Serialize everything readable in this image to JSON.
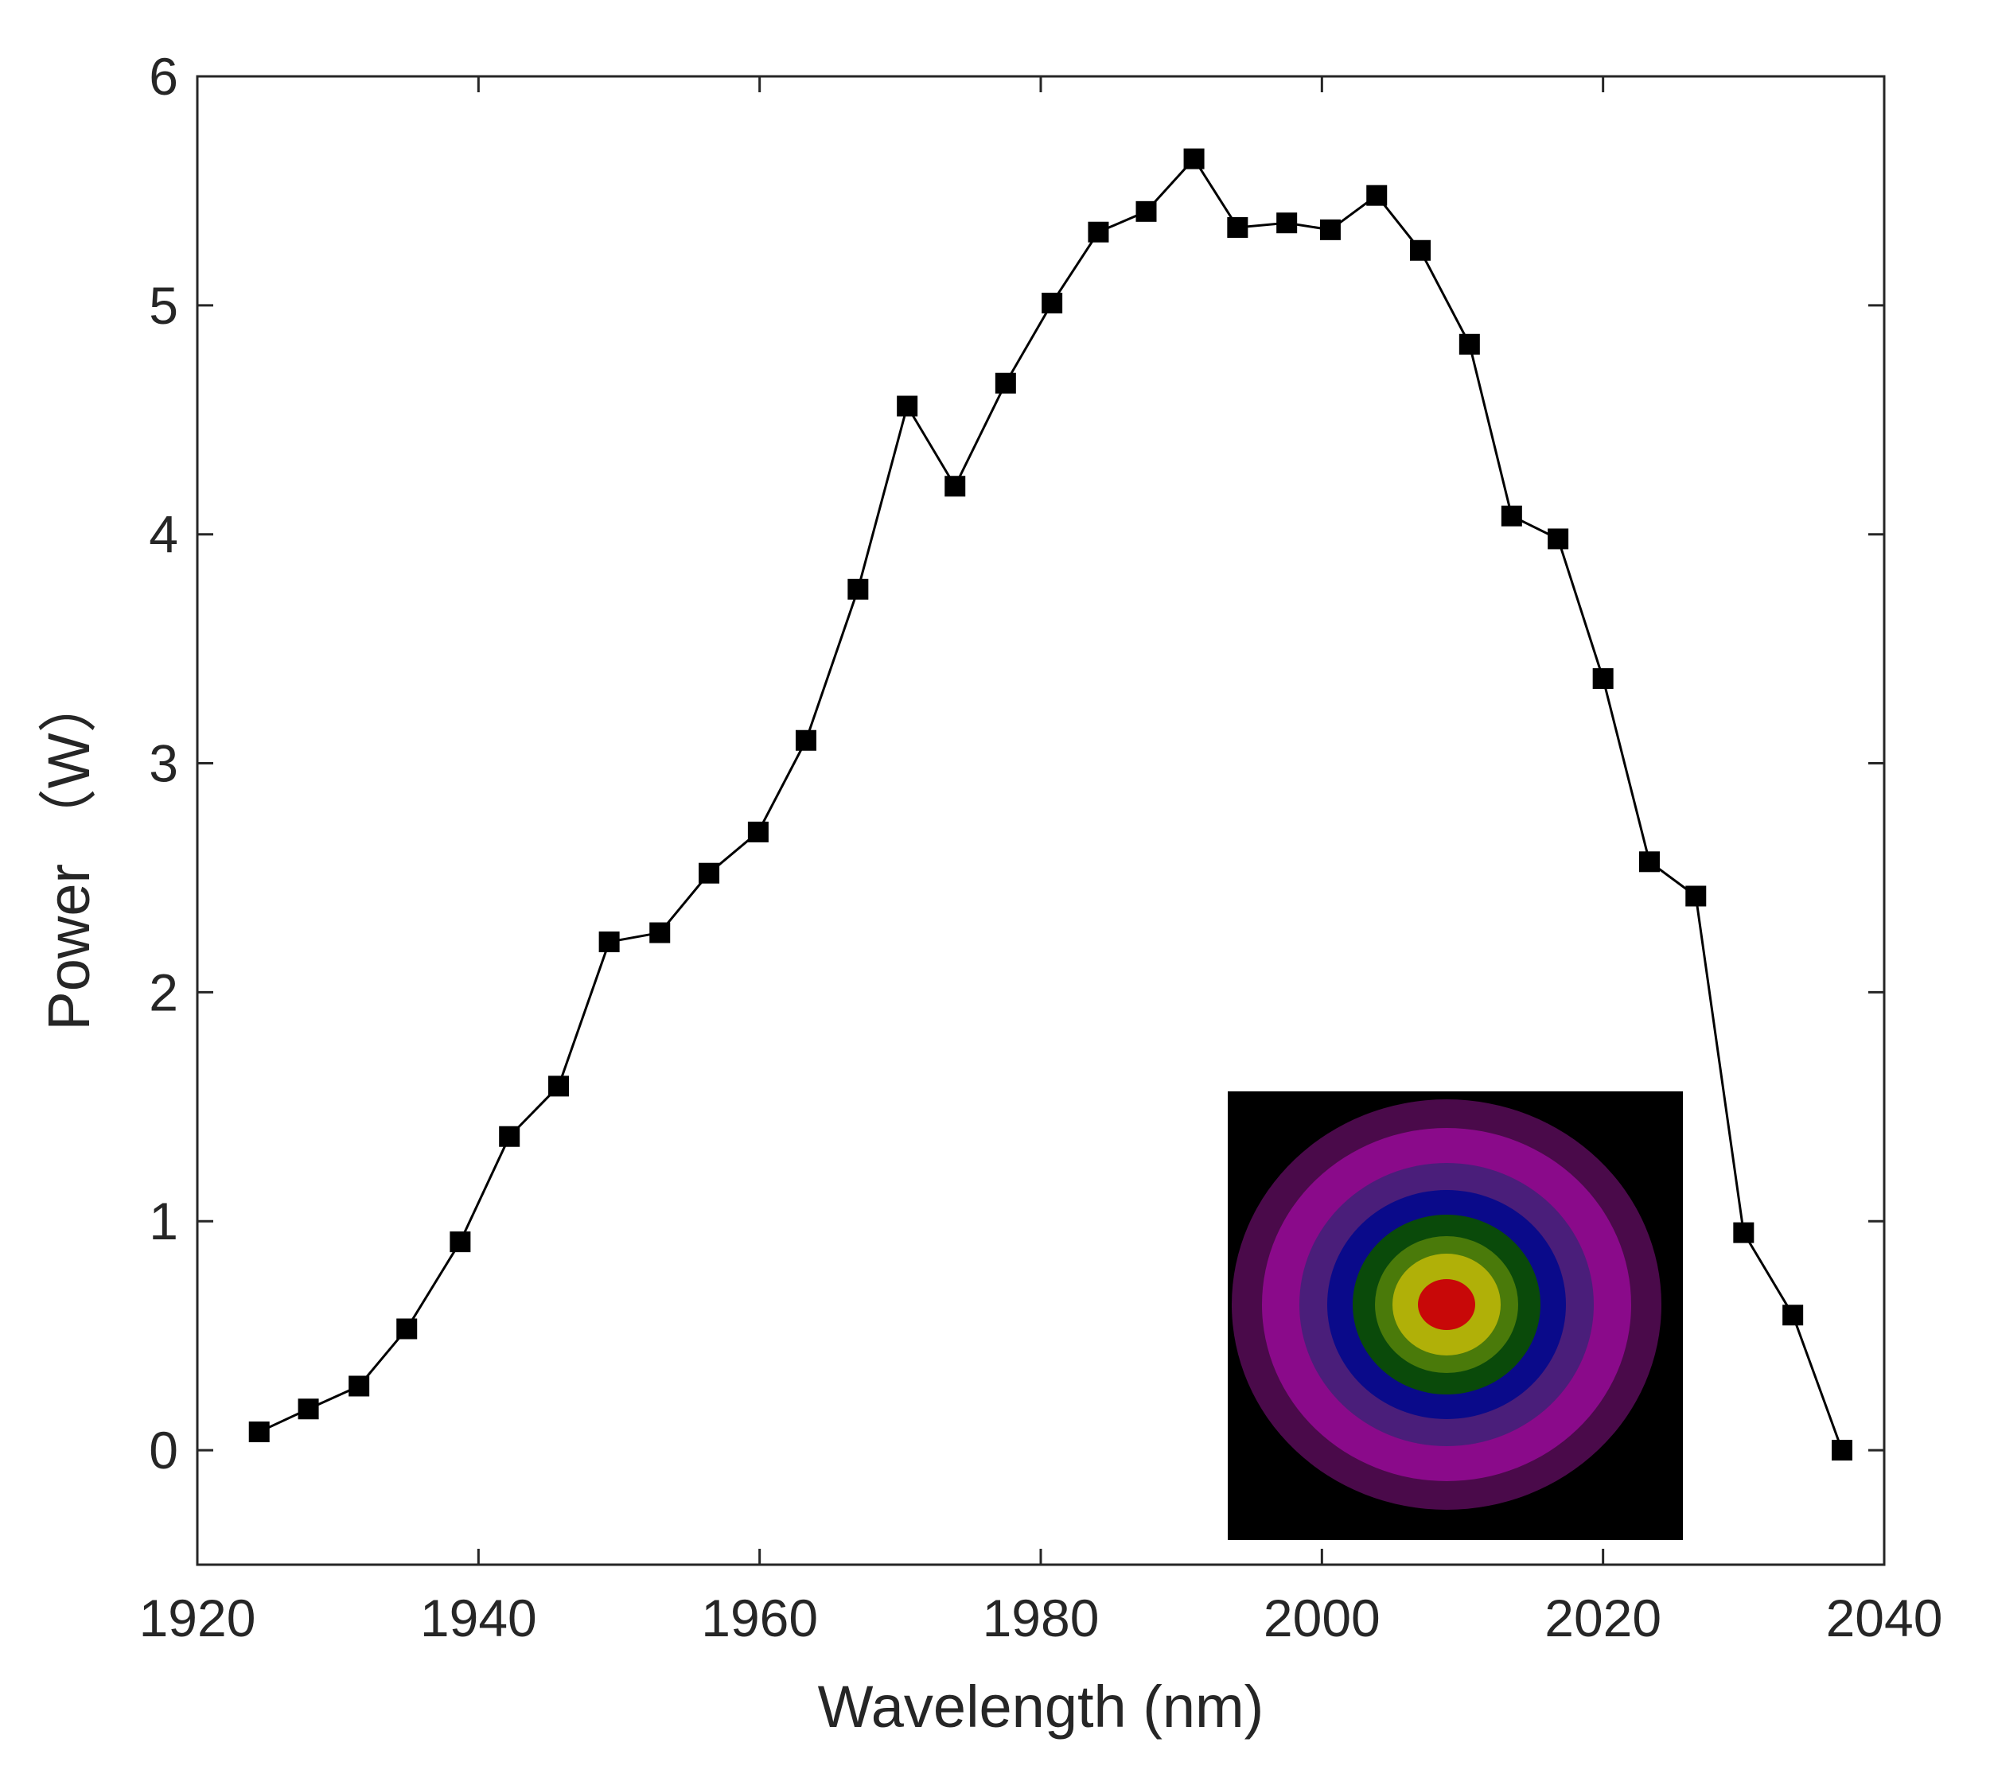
{
  "chart_data": {
    "type": "line",
    "title": "",
    "xlabel": "Wavelength (nm)",
    "ylabel": "Power （W）",
    "xlim": [
      1920,
      2040
    ],
    "ylim": [
      -0.5,
      6
    ],
    "xticks": [
      1920,
      1940,
      1960,
      1980,
      2000,
      2020,
      2040
    ],
    "yticks": [
      0,
      1,
      2,
      3,
      4,
      5,
      6
    ],
    "grid": false,
    "legend": "none",
    "series": [
      {
        "name": "Power",
        "marker": "square",
        "color": "#000000",
        "x": [
          1924.4,
          1927.9,
          1931.5,
          1934.9,
          1938.7,
          1942.2,
          1945.7,
          1949.3,
          1952.9,
          1956.4,
          1959.9,
          1963.3,
          1967.0,
          1970.5,
          1973.9,
          1977.5,
          1980.8,
          1984.1,
          1987.5,
          1990.9,
          1994.0,
          1997.5,
          2000.6,
          2003.9,
          2007.0,
          2010.5,
          2013.5,
          2016.8,
          2020.0,
          2023.3,
          2026.6,
          2030.0,
          2033.5,
          2037.0
        ],
        "y": [
          0.08,
          0.18,
          0.28,
          0.53,
          0.91,
          1.37,
          1.59,
          2.22,
          2.26,
          2.52,
          2.7,
          3.1,
          3.76,
          4.56,
          4.21,
          4.66,
          5.01,
          5.32,
          5.41,
          5.64,
          5.34,
          5.36,
          5.33,
          5.48,
          5.24,
          4.83,
          4.08,
          3.98,
          3.37,
          2.57,
          2.42,
          0.95,
          0.59,
          0.0
        ]
      }
    ],
    "inset": {
      "description_name": "beam-profile",
      "rings": [
        "#4a0a4a",
        "#8a0a8a",
        "#4a1e7a",
        "#0a0a8a",
        "#0a4a0a",
        "#4a7a0a",
        "#b0b008",
        "#c80808"
      ],
      "background": "#000000"
    }
  }
}
